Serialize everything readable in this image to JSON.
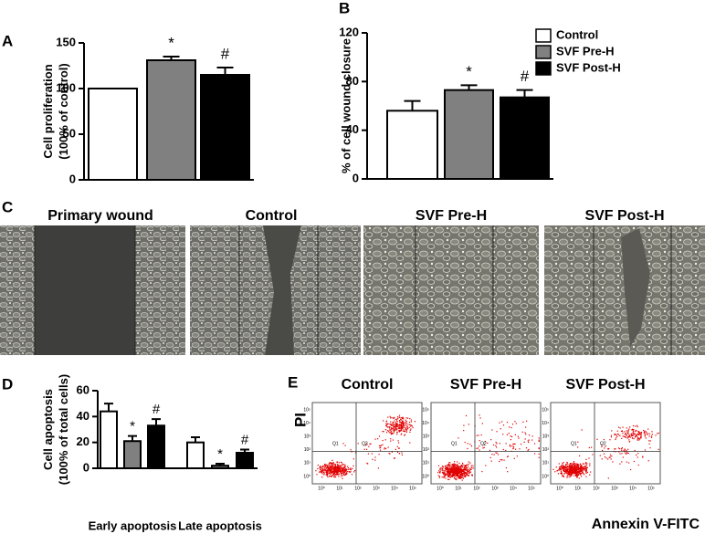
{
  "legend": [
    {
      "name": "Control",
      "color": "#ffffff"
    },
    {
      "name": "SVF Pre-H",
      "color": "#808080"
    },
    {
      "name": "SVF Post-H",
      "color": "#000000"
    }
  ],
  "chart_data": [
    {
      "type": "bar",
      "panel": "A",
      "ylabel": [
        "Cell proliferation",
        "(100% of control)"
      ],
      "values": [
        100,
        131,
        115
      ],
      "errors": [
        0,
        4,
        8
      ],
      "annotations": [
        null,
        "*",
        "#"
      ],
      "ylim": [
        0,
        150
      ],
      "yticks": [
        0,
        50,
        100,
        150
      ]
    },
    {
      "type": "bar",
      "panel": "B",
      "ylabel": [
        "% of cell wound closure"
      ],
      "values": [
        56,
        73,
        67
      ],
      "errors": [
        8,
        4,
        6
      ],
      "annotations": [
        null,
        "*",
        "#"
      ],
      "ylim": [
        0,
        120
      ],
      "yticks": [
        0,
        40,
        80,
        120
      ]
    },
    {
      "type": "grouped_bar",
      "panel": "D",
      "ylabel": [
        "Cell apoptosis",
        "(100% of total cells)"
      ],
      "categories": [
        "Early apoptosis",
        "Late apoptosis"
      ],
      "series": [
        {
          "values": [
            44,
            20
          ],
          "errors": [
            6,
            4
          ]
        },
        {
          "values": [
            21,
            2
          ],
          "errors": [
            4,
            1.5
          ]
        },
        {
          "values": [
            33,
            12
          ],
          "errors": [
            5,
            2.5
          ]
        }
      ],
      "annotations": [
        [
          null,
          null
        ],
        [
          "*",
          "*"
        ],
        [
          "#",
          "#"
        ]
      ],
      "ylim": [
        0,
        60
      ],
      "yticks": [
        0,
        20,
        40,
        60
      ]
    }
  ],
  "micrographs": {
    "panel": "C",
    "titles": [
      "Primary wound",
      "Control",
      "SVF Pre-H",
      "SVF Post-H"
    ]
  },
  "flow_cytometry": {
    "panel": "E",
    "titles": [
      "Control",
      "SVF Pre-H",
      "SVF Post-H"
    ],
    "ylabel": "PI",
    "xlabel": "Annexin V-FITC",
    "quadrants": [
      "Q1",
      "Q2"
    ],
    "ticks": [
      "10⁰",
      "10¹",
      "10²",
      "10³",
      "10⁴",
      "10⁵"
    ]
  }
}
